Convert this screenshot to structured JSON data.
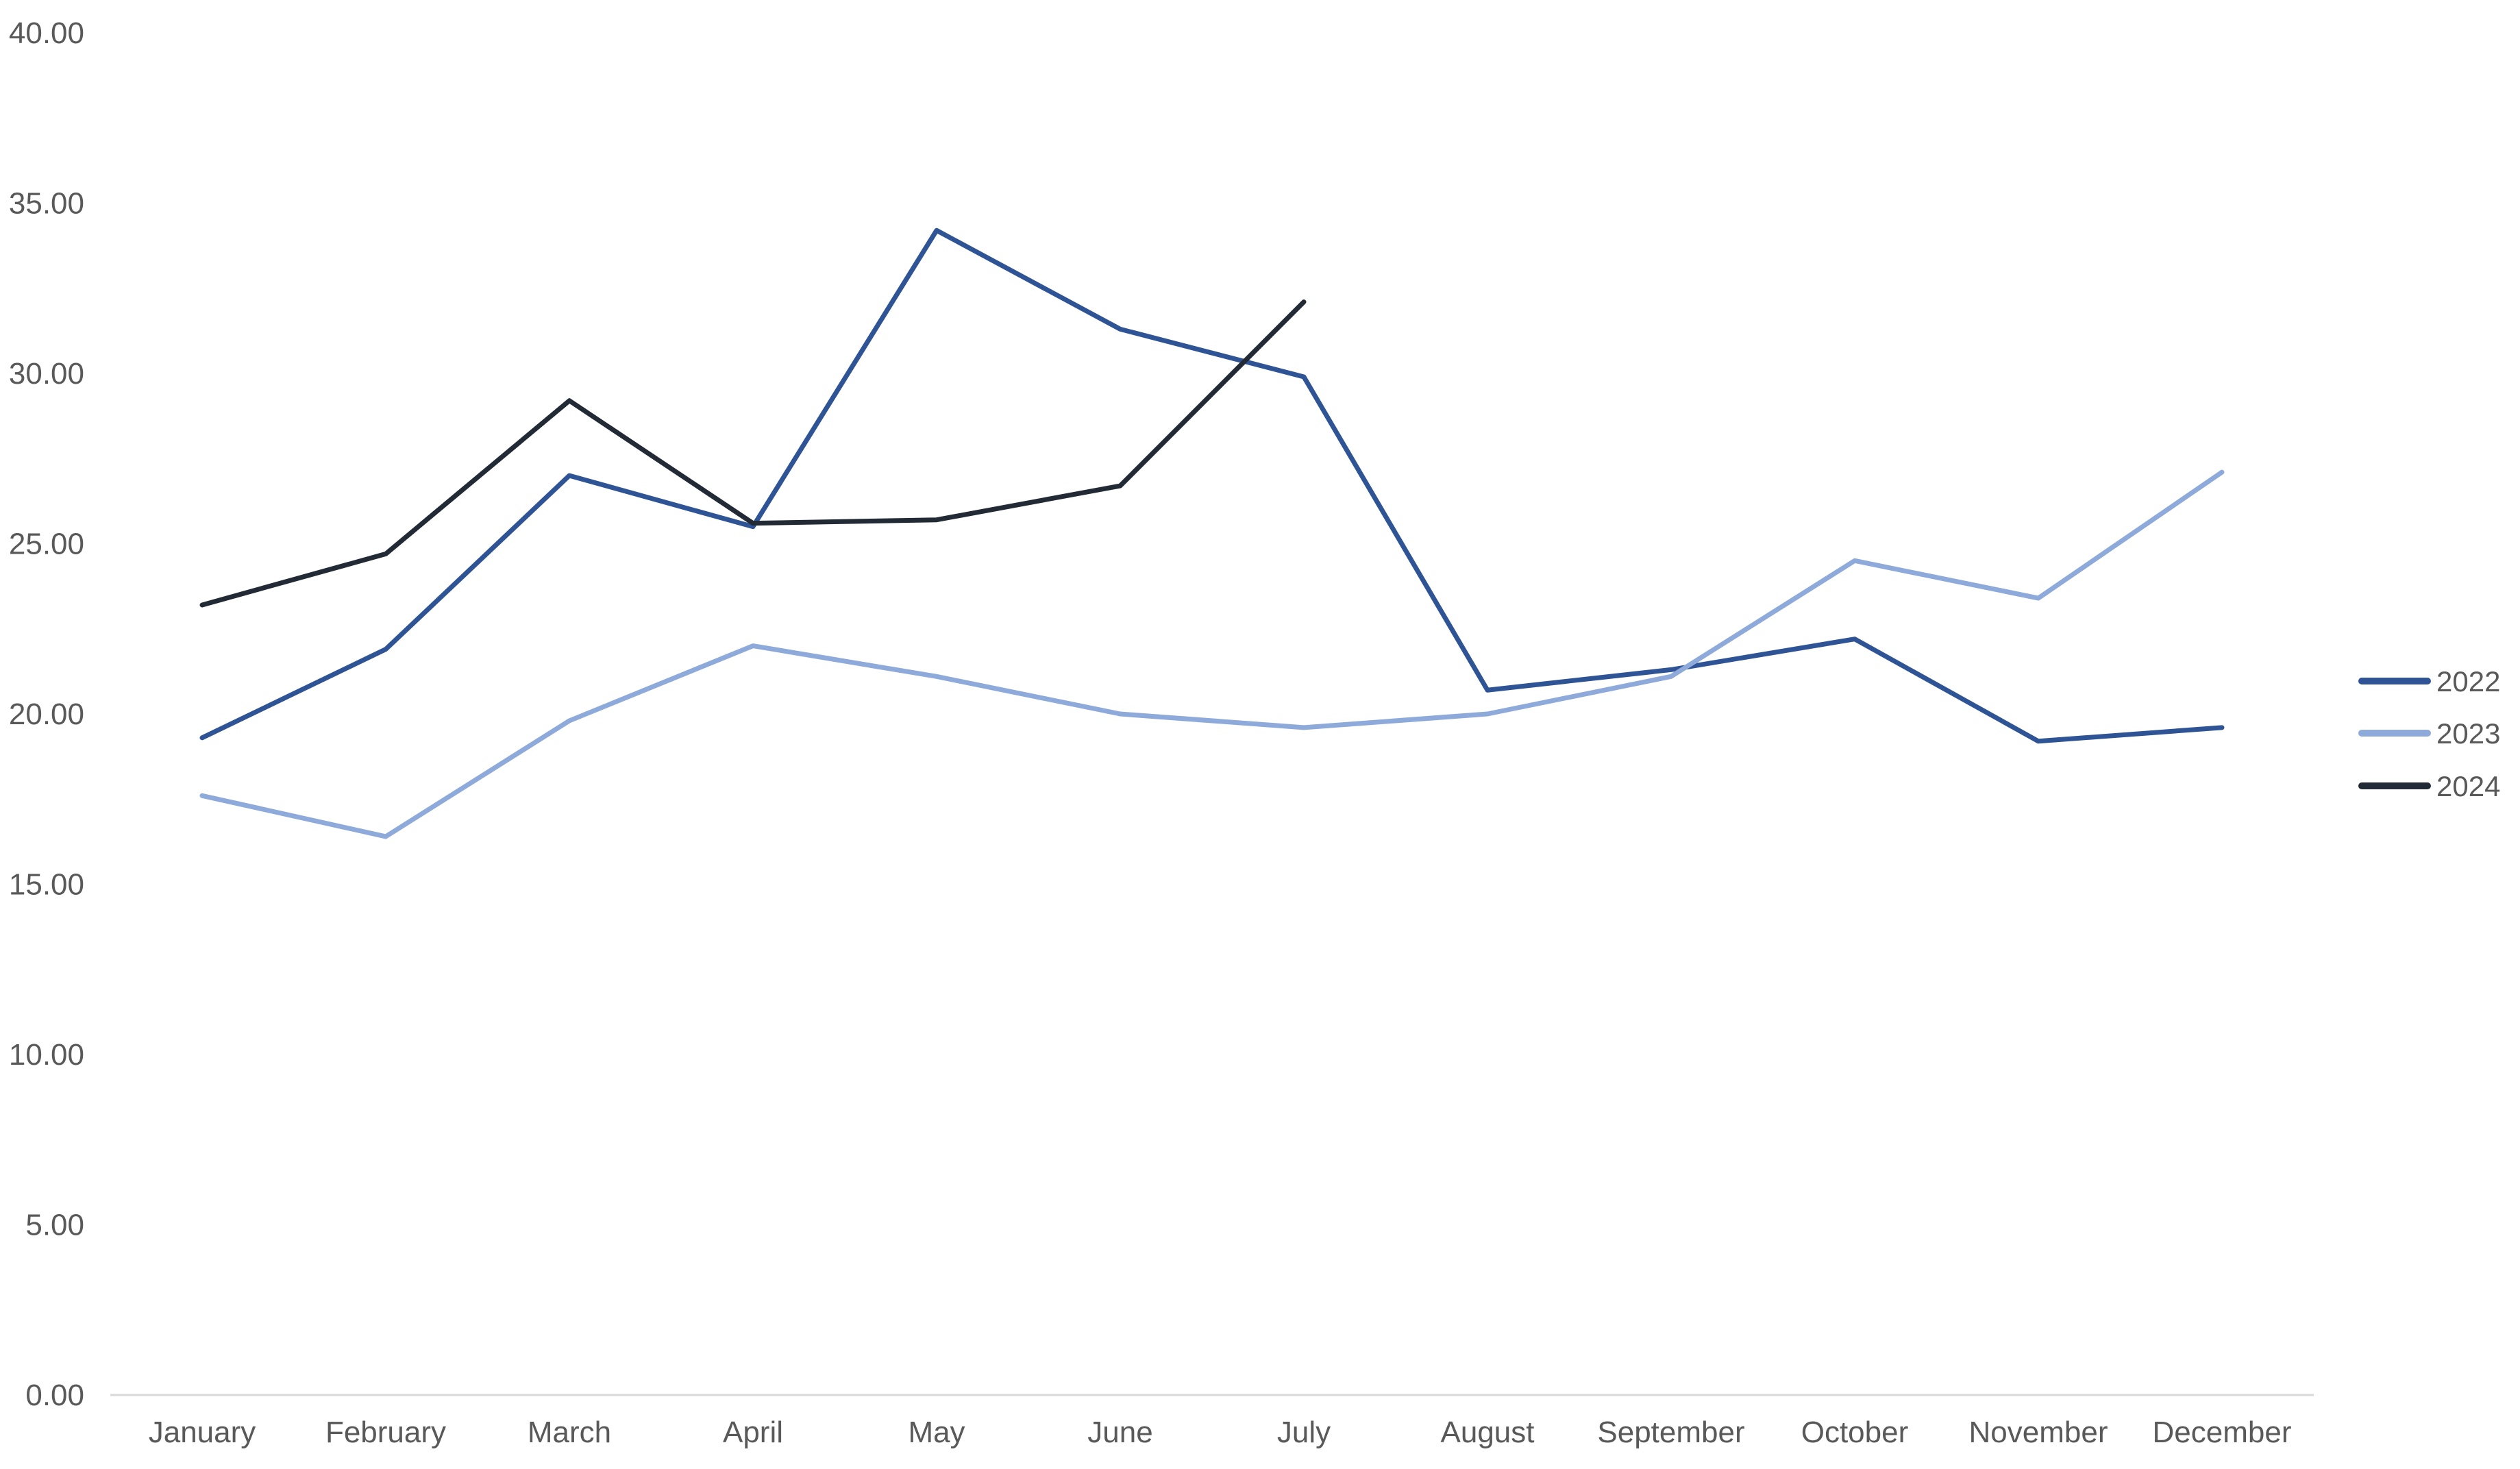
{
  "chart_data": {
    "type": "line",
    "title": "",
    "xlabel": "",
    "ylabel": "",
    "categories": [
      "January",
      "February",
      "March",
      "April",
      "May",
      "June",
      "July",
      "August",
      "September",
      "October",
      "November",
      "December"
    ],
    "series": [
      {
        "name": "2022",
        "color": "#2F5496",
        "values": [
          19.3,
          21.9,
          27.0,
          25.5,
          34.2,
          31.3,
          29.9,
          20.7,
          21.3,
          22.2,
          19.2,
          19.6
        ]
      },
      {
        "name": "2023",
        "color": "#8EAADB",
        "values": [
          17.6,
          16.4,
          19.8,
          22.0,
          21.1,
          20.0,
          19.6,
          20.0,
          21.1,
          24.5,
          23.4,
          27.1
        ]
      },
      {
        "name": "2024",
        "color": "#222A35",
        "values": [
          23.2,
          24.7,
          29.2,
          25.6,
          25.7,
          26.7,
          32.1,
          null,
          null,
          null,
          null,
          null
        ]
      }
    ],
    "ylim": [
      0,
      40
    ],
    "ytick_step": 5,
    "y_ticks": [
      "0.00",
      "5.00",
      "10.00",
      "15.00",
      "20.00",
      "25.00",
      "30.00",
      "35.00",
      "40.00"
    ],
    "grid": false,
    "legend_position": "right",
    "legend_entries": [
      "2022",
      "2023",
      "2024"
    ]
  },
  "style": {
    "background": "#FFFFFF",
    "axis_line_color": "#D9D9D9",
    "label_color": "#595959"
  }
}
